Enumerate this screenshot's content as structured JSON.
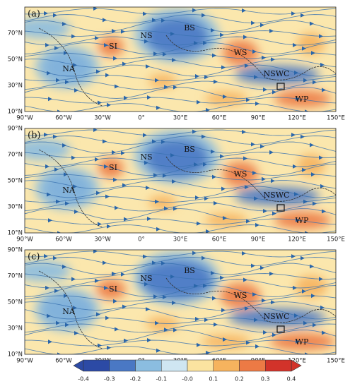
{
  "panels": [
    {
      "label": "(a)",
      "regions": [
        "NA",
        "SI",
        "NS",
        "BS",
        "WS",
        "NSWC",
        "WP"
      ],
      "lat_ticks": [
        "10°N",
        "30°N",
        "50°N",
        "70°N"
      ]
    },
    {
      "label": "(b)",
      "regions": [
        "NA",
        "SI",
        "NS",
        "BS",
        "WS",
        "NSWC",
        "WP"
      ],
      "lat_ticks": [
        "10°N",
        "30°N",
        "50°N",
        "70°N",
        "90°N"
      ]
    },
    {
      "label": "(c)",
      "regions": [
        "NA",
        "SI",
        "NS",
        "BS",
        "WS",
        "NSWC",
        "WP"
      ],
      "lat_ticks": [
        "10°N",
        "30°N",
        "50°N",
        "70°N",
        "90°N"
      ]
    }
  ],
  "lon_ticks": [
    "90°W",
    "60°W",
    "30°W",
    "0°",
    "30°E",
    "60°E",
    "90°E",
    "120°E",
    "150°E"
  ],
  "colorbar": {
    "labels": [
      "-0.4",
      "-0.3",
      "-0.2",
      "-0.1",
      "-0.0",
      "0.1",
      "0.2",
      "0.3",
      "0.4"
    ],
    "colors": [
      "#2c4aa5",
      "#4a78c4",
      "#8bbde0",
      "#cfe6f2",
      "#fbe3a0",
      "#f6b35e",
      "#ec7a45",
      "#d2332a"
    ]
  }
}
